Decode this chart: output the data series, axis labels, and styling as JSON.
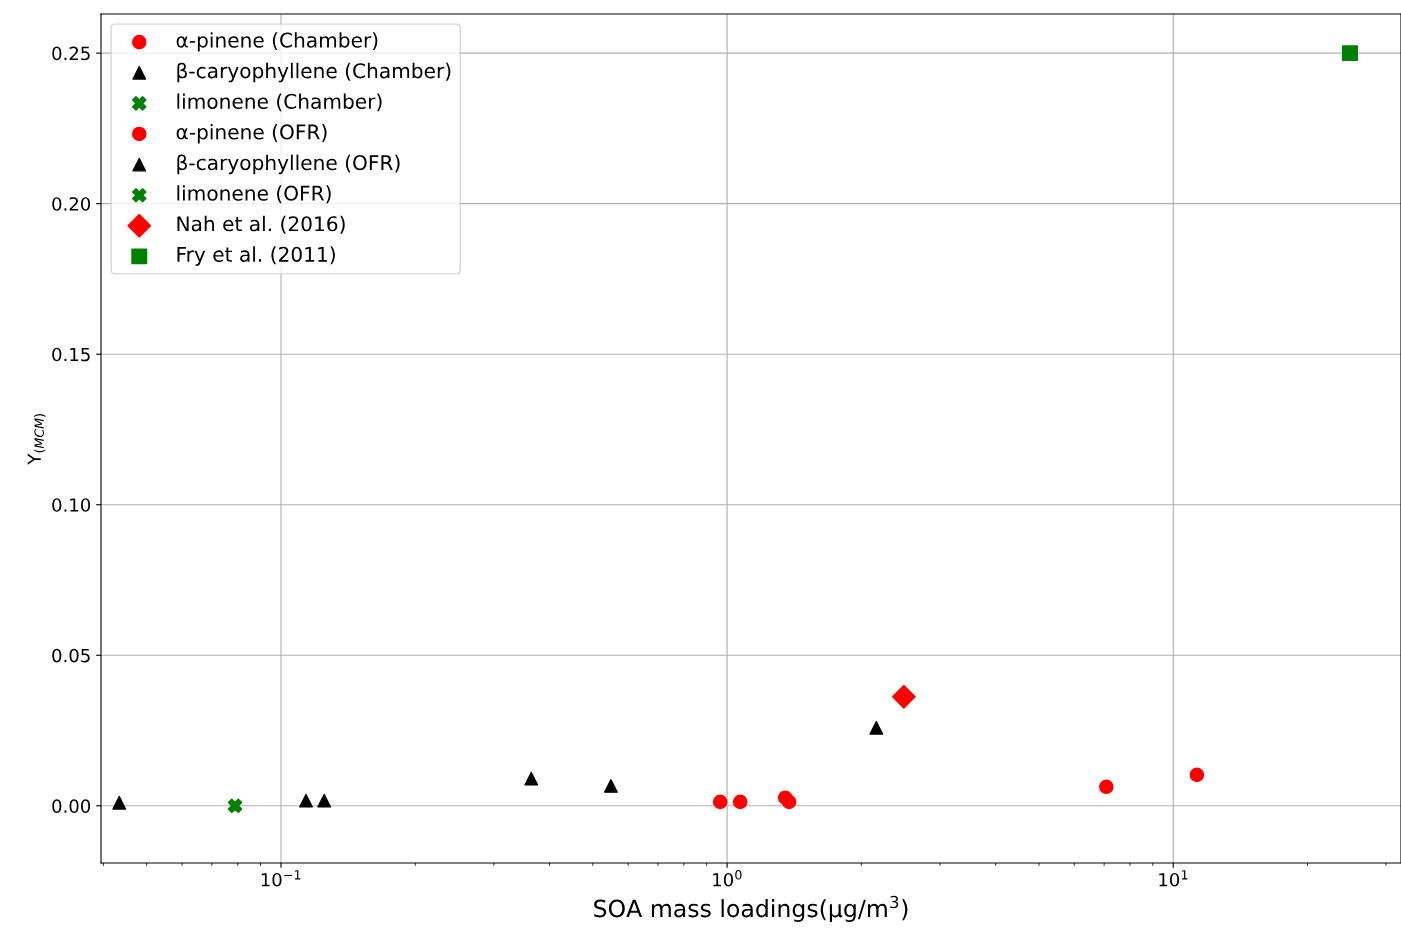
{
  "chart_data": {
    "type": "scatter",
    "xlabel": "SOA mass loadings(μg/m$^{3}$)",
    "ylabel": "Y$_{(MCM)}$",
    "log": "x",
    "xlim": [
      0.0395,
      32.4
    ],
    "ylim": [
      -0.019,
      0.263
    ],
    "xticks": [
      {
        "value": 0.1,
        "label": "10$^{−1}$"
      },
      {
        "value": 1,
        "label": "10$^{0}$"
      },
      {
        "value": 10,
        "label": "10$^{1}$"
      }
    ],
    "yticks": [
      {
        "value": 0.0,
        "label": "0.00"
      },
      {
        "value": 0.05,
        "label": "0.05"
      },
      {
        "value": 0.1,
        "label": "0.10"
      },
      {
        "value": 0.15,
        "label": "0.15"
      },
      {
        "value": 0.2,
        "label": "0.20"
      },
      {
        "value": 0.25,
        "label": "0.25"
      }
    ],
    "grid": true,
    "legend": "top left",
    "series": [
      {
        "name": "α-pinene (Chamber)",
        "color": "#ff0000",
        "marker": "circle",
        "x": [
          0.965,
          1.377,
          7.08
        ],
        "values": [
          0.0013,
          0.0013,
          0.0063
        ]
      },
      {
        "name": "β-caryophyllene (Chamber)",
        "color": "#000000",
        "marker": "triangle",
        "x": [
          0.0434,
          0.1138,
          0.549
        ],
        "values": [
          0.001,
          0.0017,
          0.0066
        ]
      },
      {
        "name": "limonene (Chamber)",
        "color": "#008000",
        "marker": "cross",
        "x": [
          0.0789
        ],
        "values": [
          0.0
        ]
      },
      {
        "name": "α-pinene (OFR)",
        "color": "#ff0000",
        "marker": "circle",
        "x": [
          1.07,
          1.35,
          11.3
        ],
        "values": [
          0.0013,
          0.0027,
          0.0103
        ]
      },
      {
        "name": "β-caryophyllene (OFR)",
        "color": "#000000",
        "marker": "triangle",
        "x": [
          0.125,
          0.364,
          2.16
        ],
        "values": [
          0.0017,
          0.009,
          0.0259
        ]
      },
      {
        "name": "limonene (OFR)",
        "color": "#008000",
        "marker": "cross"
      },
      {
        "name": "Nah et al. (2016)",
        "color": "#ff0000",
        "marker": "diamond",
        "x": [
          2.49
        ],
        "values": [
          0.0362
        ]
      },
      {
        "name": "Fry et al. (2011)",
        "color": "#008000",
        "marker": "square",
        "x": [
          24.9
        ],
        "values": [
          0.25
        ]
      }
    ]
  }
}
